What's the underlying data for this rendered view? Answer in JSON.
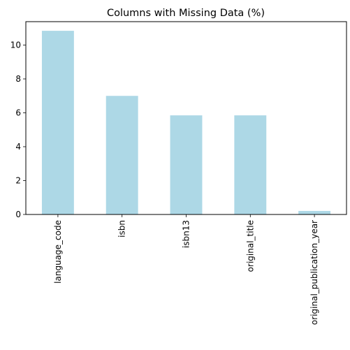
{
  "chart_data": {
    "type": "bar",
    "title": "Columns with Missing Data (%)",
    "xlabel": "",
    "ylabel": "",
    "categories": [
      "language_code",
      "isbn",
      "isbn13",
      "original_title",
      "original_publication_year"
    ],
    "values": [
      10.84,
      7.0,
      5.85,
      5.85,
      0.21
    ],
    "ylim": [
      0,
      11.38
    ],
    "yticks": [
      0,
      2,
      4,
      6,
      8,
      10
    ],
    "ytick_labels": [
      "0",
      "2",
      "4",
      "6",
      "8",
      "10"
    ],
    "bar_color": "#add8e6",
    "grid": false,
    "legend": "none"
  }
}
